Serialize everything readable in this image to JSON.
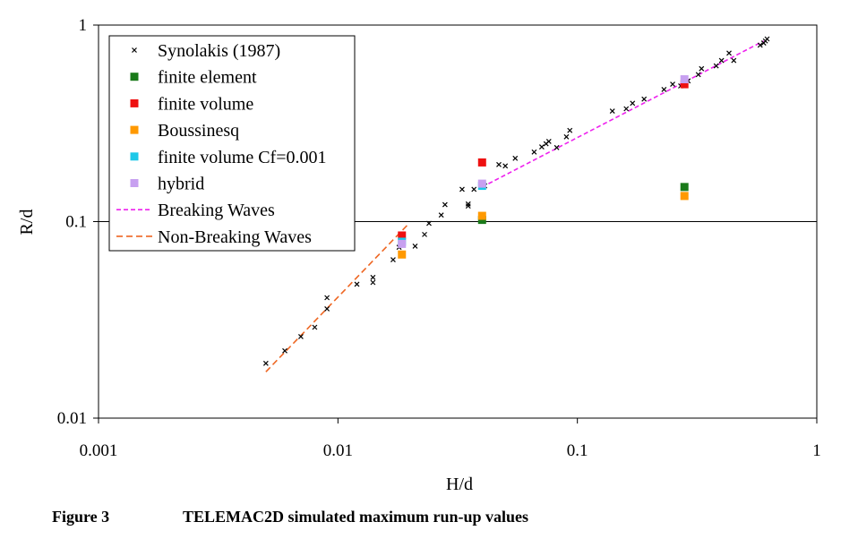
{
  "chart_data": {
    "type": "scatter",
    "title": "",
    "xlabel": "H/d",
    "ylabel": "R/d",
    "xscale": "log",
    "yscale": "log",
    "xlim": [
      0.001,
      1
    ],
    "ylim": [
      0.01,
      1
    ],
    "x_ticks": [
      0.001,
      0.01,
      0.1,
      1
    ],
    "x_tick_labels": [
      "0.001",
      "0.01",
      "0.1",
      "1"
    ],
    "y_ticks": [
      0.01,
      0.1,
      1
    ],
    "y_tick_labels": [
      "0.01",
      "0.1",
      "1"
    ],
    "gridlines_y": [
      0.1
    ],
    "legend_position": "top-left",
    "series": [
      {
        "name": "Synolakis (1987)",
        "marker": "x",
        "color": "#000000",
        "points": [
          [
            0.005,
            0.019
          ],
          [
            0.006,
            0.022
          ],
          [
            0.007,
            0.026
          ],
          [
            0.008,
            0.029
          ],
          [
            0.009,
            0.036
          ],
          [
            0.009,
            0.041
          ],
          [
            0.012,
            0.048
          ],
          [
            0.014,
            0.049
          ],
          [
            0.014,
            0.052
          ],
          [
            0.017,
            0.064
          ],
          [
            0.018,
            0.074
          ],
          [
            0.021,
            0.075
          ],
          [
            0.023,
            0.086
          ],
          [
            0.024,
            0.098
          ],
          [
            0.027,
            0.108
          ],
          [
            0.028,
            0.122
          ],
          [
            0.033,
            0.146
          ],
          [
            0.035,
            0.12
          ],
          [
            0.035,
            0.123
          ],
          [
            0.037,
            0.146
          ],
          [
            0.041,
            0.152
          ],
          [
            0.047,
            0.195
          ],
          [
            0.05,
            0.192
          ],
          [
            0.055,
            0.21
          ],
          [
            0.066,
            0.226
          ],
          [
            0.071,
            0.24
          ],
          [
            0.074,
            0.249
          ],
          [
            0.076,
            0.256
          ],
          [
            0.082,
            0.238
          ],
          [
            0.09,
            0.27
          ],
          [
            0.093,
            0.291
          ],
          [
            0.14,
            0.365
          ],
          [
            0.16,
            0.375
          ],
          [
            0.17,
            0.4
          ],
          [
            0.19,
            0.42
          ],
          [
            0.23,
            0.47
          ],
          [
            0.25,
            0.5
          ],
          [
            0.27,
            0.49
          ],
          [
            0.29,
            0.52
          ],
          [
            0.32,
            0.56
          ],
          [
            0.33,
            0.6
          ],
          [
            0.38,
            0.62
          ],
          [
            0.4,
            0.66
          ],
          [
            0.43,
            0.72
          ],
          [
            0.45,
            0.66
          ],
          [
            0.58,
            0.79
          ],
          [
            0.6,
            0.81
          ],
          [
            0.61,
            0.83
          ],
          [
            0.62,
            0.85
          ]
        ]
      },
      {
        "name": "finite element",
        "marker": "square",
        "color": "#1a7a1a",
        "points": [
          [
            0.04,
            0.102
          ],
          [
            0.28,
            0.15
          ]
        ]
      },
      {
        "name": "finite volume",
        "marker": "square",
        "color": "#ee1111",
        "points": [
          [
            0.0185,
            0.085
          ],
          [
            0.04,
            0.2
          ],
          [
            0.28,
            0.5
          ]
        ]
      },
      {
        "name": "Boussinesq",
        "marker": "square",
        "color": "#ff9900",
        "points": [
          [
            0.0185,
            0.068
          ],
          [
            0.04,
            0.107
          ],
          [
            0.28,
            0.135
          ]
        ]
      },
      {
        "name": "finite volume Cf=0.001",
        "marker": "square",
        "color": "#1ec8e8",
        "points": [
          [
            0.0185,
            0.079
          ],
          [
            0.04,
            0.152
          ]
        ]
      },
      {
        "name": "hybrid",
        "marker": "square",
        "color": "#c7a0f0",
        "points": [
          [
            0.0185,
            0.077
          ],
          [
            0.04,
            0.156
          ],
          [
            0.28,
            0.53
          ]
        ]
      },
      {
        "name": "Breaking Waves",
        "marker": "dashed-line",
        "color": "#ee22ee",
        "points": [
          [
            0.04,
            0.15
          ],
          [
            0.6,
            0.83
          ]
        ]
      },
      {
        "name": "Non-Breaking Waves",
        "marker": "dashed-line",
        "color": "#ee6622",
        "points": [
          [
            0.005,
            0.0172
          ],
          [
            0.0195,
            0.096
          ]
        ]
      }
    ]
  },
  "caption": {
    "number": "Figure 3",
    "text": "TELEMAC2D simulated maximum run-up values"
  }
}
